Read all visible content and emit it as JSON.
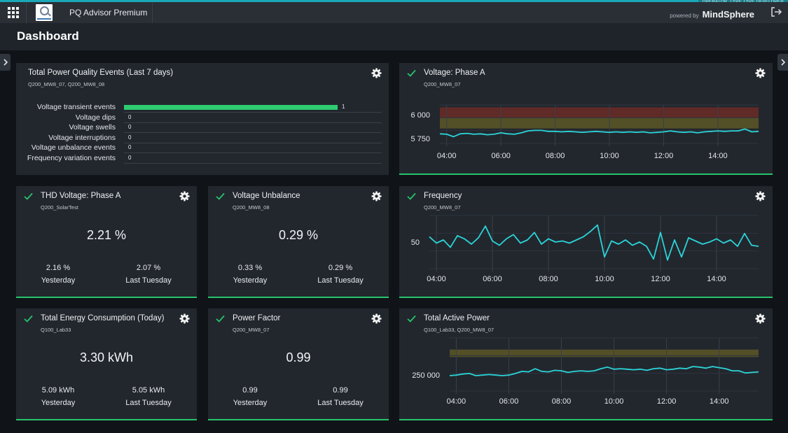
{
  "app": {
    "name": "PQ Advisor Premium",
    "dev_tag": "OPERATOR_TYPE.TYPE.DEVELOPER",
    "powered_by": "powered by",
    "brand": "MindSphere",
    "icons": {
      "apps": "apps-grid-icon",
      "logo": "app-logo-icon",
      "exit": "exit-icon"
    }
  },
  "page": {
    "title": "Dashboard"
  },
  "colors": {
    "accent": "#1aa7b8",
    "ok": "#27c46b",
    "line": "#2bd4d8",
    "band_red": "#6b2b26",
    "band_amber": "#5c5726"
  },
  "cards": {
    "events": {
      "title": "Total Power Quality Events (Last 7 days)",
      "subtitle": "Q200_MW8_07, Q200_MW8_08",
      "max": 1,
      "rows": [
        {
          "label": "Voltage transient events",
          "value": 1
        },
        {
          "label": "Voltage dips",
          "value": 0
        },
        {
          "label": "Voltage swells",
          "value": 0
        },
        {
          "label": "Voltage interruptions",
          "value": 0
        },
        {
          "label": "Voltage unbalance events",
          "value": 0
        },
        {
          "label": "Frequency variation events",
          "value": 0
        }
      ]
    },
    "thd": {
      "title": "THD Voltage: Phase A",
      "subtitle": "Q200_SolarTest",
      "value": "2.21 %",
      "left_value": "2.16 %",
      "left_label": "Yesterday",
      "right_value": "2.07 %",
      "right_label": "Last Tuesday"
    },
    "unbalance": {
      "title": "Voltage Unbalance",
      "subtitle": "Q200_MW8_08",
      "value": "0.29 %",
      "left_value": "0.33 %",
      "left_label": "Yesterday",
      "right_value": "0.29 %",
      "right_label": "Last Tuesday"
    },
    "energy": {
      "title": "Total Energy Consumption (Today)",
      "subtitle": "Q100_Lab33",
      "value": "3.30 kWh",
      "left_value": "5.09 kWh",
      "left_label": "Yesterday",
      "right_value": "5.05 kWh",
      "right_label": "Last Tuesday"
    },
    "pf": {
      "title": "Power Factor",
      "subtitle": "Q200_MW8_07",
      "value": "0.99",
      "left_value": "0.99",
      "left_label": "Yesterday",
      "right_value": "0.99",
      "right_label": "Last Tuesday"
    },
    "voltage": {
      "title": "Voltage: Phase A",
      "subtitle": "Q200_MW8_07"
    },
    "frequency": {
      "title": "Frequency",
      "subtitle": "Q200_MW8_07"
    },
    "power": {
      "title": "Total Active Power",
      "subtitle": "Q100_Lab33, Q200_MW8_07"
    }
  },
  "chart_data": [
    {
      "type": "line",
      "title": "Voltage: Phase A",
      "xlabels": [
        "04:00",
        "06:00",
        "08:00",
        "10:00",
        "12:00",
        "14:00"
      ],
      "x_range": [
        3.75,
        15.5
      ],
      "ylabels": [
        {
          "value": 6000,
          "label": "6 000"
        },
        {
          "value": 5750,
          "label": "5 750"
        }
      ],
      "ylim": [
        5700,
        6100
      ],
      "bands": [
        {
          "from": 5965,
          "to": 6075,
          "color": "band_red"
        },
        {
          "from": 5855,
          "to": 5965,
          "color": "band_amber"
        }
      ],
      "series": [
        {
          "x": [
            3.75,
            4.0,
            4.25,
            4.5,
            4.75,
            5.0,
            5.25,
            5.5,
            5.75,
            6.0,
            6.25,
            6.5,
            6.75,
            7.0,
            7.25,
            7.5,
            7.75,
            8.0,
            8.25,
            8.5,
            8.75,
            9.0,
            9.25,
            9.5,
            9.75,
            10.0,
            10.25,
            10.5,
            10.75,
            11.0,
            11.25,
            11.5,
            11.75,
            12.0,
            12.25,
            12.5,
            12.75,
            13.0,
            13.25,
            13.5,
            13.75,
            14.0,
            14.25,
            14.5,
            14.75,
            15.0,
            15.25,
            15.5
          ],
          "y": [
            5800,
            5795,
            5770,
            5800,
            5805,
            5795,
            5800,
            5790,
            5795,
            5810,
            5800,
            5795,
            5810,
            5830,
            5835,
            5835,
            5825,
            5825,
            5820,
            5825,
            5820,
            5815,
            5820,
            5825,
            5820,
            5815,
            5820,
            5815,
            5820,
            5815,
            5820,
            5810,
            5815,
            5820,
            5830,
            5820,
            5815,
            5820,
            5810,
            5820,
            5825,
            5830,
            5825,
            5830,
            5830,
            5850,
            5820,
            5825
          ]
        }
      ]
    },
    {
      "type": "line",
      "title": "Frequency",
      "xlabels": [
        "04:00",
        "06:00",
        "08:00",
        "10:00",
        "12:00",
        "14:00"
      ],
      "x_range": [
        3.75,
        15.5
      ],
      "ylabels": [
        {
          "value": 50,
          "label": "50"
        }
      ],
      "ylim": [
        49.95,
        50.05
      ],
      "series": [
        {
          "x": [
            3.75,
            4.0,
            4.25,
            4.5,
            4.75,
            5.0,
            5.25,
            5.5,
            5.75,
            6.0,
            6.25,
            6.5,
            6.75,
            7.0,
            7.25,
            7.5,
            7.75,
            8.0,
            8.25,
            8.5,
            8.75,
            9.0,
            9.25,
            9.5,
            9.75,
            10.0,
            10.25,
            10.5,
            10.75,
            11.0,
            11.25,
            11.5,
            11.75,
            12.0,
            12.25,
            12.5,
            12.75,
            13.0,
            13.25,
            13.5,
            13.75,
            14.0,
            14.25,
            14.5,
            14.75,
            15.0,
            15.25,
            15.5
          ],
          "y": [
            50.01,
            49.998,
            50.004,
            49.99,
            50.012,
            50.006,
            49.996,
            50.008,
            50.03,
            50.002,
            49.994,
            50.006,
            50.014,
            49.998,
            50.004,
            50.018,
            49.996,
            50.006,
            50.0,
            50.002,
            49.998,
            50.004,
            50.01,
            50.02,
            50.032,
            49.972,
            50.002,
            49.996,
            50.004,
            49.994,
            50.0,
            49.992,
            49.968,
            50.018,
            49.966,
            50.004,
            49.972,
            50.008,
            50.002,
            49.996,
            50.0,
            50.006,
            49.998,
            50.004,
            49.992,
            50.016,
            49.994,
            49.992
          ]
        }
      ]
    },
    {
      "type": "line",
      "title": "Total Active Power",
      "xlabels": [
        "04:00",
        "06:00",
        "08:00",
        "10:00",
        "12:00",
        "14:00"
      ],
      "x_range": [
        3.75,
        15.5
      ],
      "ylabels": [
        {
          "value": 250000,
          "label": "250 000"
        }
      ],
      "ylim": [
        220000,
        320000
      ],
      "bands": [
        {
          "from": 284000,
          "to": 298000,
          "color": "band_amber"
        }
      ],
      "series": [
        {
          "x": [
            3.75,
            4.0,
            4.25,
            4.5,
            4.75,
            5.0,
            5.25,
            5.5,
            5.75,
            6.0,
            6.25,
            6.5,
            6.75,
            7.0,
            7.25,
            7.5,
            7.75,
            8.0,
            8.25,
            8.5,
            8.75,
            9.0,
            9.25,
            9.5,
            9.75,
            10.0,
            10.25,
            10.5,
            10.75,
            11.0,
            11.25,
            11.5,
            11.75,
            12.0,
            12.25,
            12.5,
            12.75,
            13.0,
            13.25,
            13.5,
            13.75,
            14.0,
            14.25,
            14.5,
            14.75,
            15.0,
            15.25,
            15.5
          ],
          "y": [
            249000,
            250000,
            252000,
            253000,
            249000,
            250000,
            251000,
            250000,
            249000,
            250000,
            253000,
            257000,
            256000,
            262000,
            257000,
            256000,
            259000,
            258000,
            255000,
            257000,
            258000,
            257000,
            258000,
            262000,
            265000,
            261000,
            262000,
            261000,
            260000,
            261000,
            259000,
            262000,
            263000,
            260000,
            261000,
            263000,
            262000,
            266000,
            265000,
            263000,
            266000,
            264000,
            262000,
            258000,
            258000,
            254000,
            255000,
            256000
          ]
        }
      ]
    }
  ]
}
